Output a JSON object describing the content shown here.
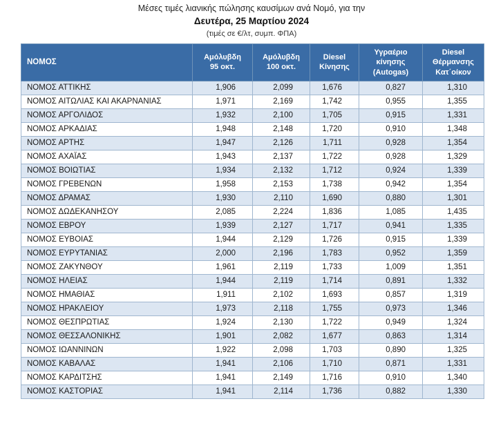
{
  "title": {
    "line1": "Μέσες τιμές λιανικής πώλησης καυσίμων ανά Νομό, για την",
    "line2": "Δευτέρα, 25 Μαρτίου 2024",
    "line3": "(τιμές σε €/λτ, συμπ. ΦΠΑ)"
  },
  "table": {
    "columns": [
      "ΝΟΜΟΣ",
      "Αμόλυβδη\n95 οκτ.",
      "Αμόλυβδη\n100 οκτ.",
      "Diesel\nΚίνησης",
      "Υγραέριο\nκίνησης\n(Autogas)",
      "Diesel\nΘέρμανσης\nΚατ΄οίκον"
    ],
    "rows": [
      {
        "nomos": "ΝΟΜΟΣ ΑΤΤΙΚΗΣ",
        "values": [
          "1,906",
          "2,099",
          "1,676",
          "0,827",
          "1,310"
        ]
      },
      {
        "nomos": "ΝΟΜΟΣ ΑΙΤΩΛΙΑΣ ΚΑΙ ΑΚΑΡΝΑΝΙΑΣ",
        "values": [
          "1,971",
          "2,169",
          "1,742",
          "0,955",
          "1,355"
        ]
      },
      {
        "nomos": "ΝΟΜΟΣ ΑΡΓΟΛΙΔΟΣ",
        "values": [
          "1,932",
          "2,100",
          "1,705",
          "0,915",
          "1,331"
        ]
      },
      {
        "nomos": "ΝΟΜΟΣ ΑΡΚΑΔΙΑΣ",
        "values": [
          "1,948",
          "2,148",
          "1,720",
          "0,910",
          "1,348"
        ]
      },
      {
        "nomos": "ΝΟΜΟΣ ΑΡΤΗΣ",
        "values": [
          "1,947",
          "2,126",
          "1,711",
          "0,928",
          "1,354"
        ]
      },
      {
        "nomos": "ΝΟΜΟΣ ΑΧΑΪΑΣ",
        "values": [
          "1,943",
          "2,137",
          "1,722",
          "0,928",
          "1,329"
        ]
      },
      {
        "nomos": "ΝΟΜΟΣ ΒΟΙΩΤΙΑΣ",
        "values": [
          "1,934",
          "2,132",
          "1,712",
          "0,924",
          "1,339"
        ]
      },
      {
        "nomos": "ΝΟΜΟΣ ΓΡΕΒΕΝΩΝ",
        "values": [
          "1,958",
          "2,153",
          "1,738",
          "0,942",
          "1,354"
        ]
      },
      {
        "nomos": "ΝΟΜΟΣ ΔΡΑΜΑΣ",
        "values": [
          "1,930",
          "2,110",
          "1,690",
          "0,880",
          "1,301"
        ]
      },
      {
        "nomos": "ΝΟΜΟΣ ΔΩΔΕΚΑΝΗΣΟΥ",
        "values": [
          "2,085",
          "2,224",
          "1,836",
          "1,085",
          "1,435"
        ]
      },
      {
        "nomos": "ΝΟΜΟΣ ΕΒΡΟΥ",
        "values": [
          "1,939",
          "2,127",
          "1,717",
          "0,941",
          "1,335"
        ]
      },
      {
        "nomos": "ΝΟΜΟΣ ΕΥΒΟΙΑΣ",
        "values": [
          "1,944",
          "2,129",
          "1,726",
          "0,915",
          "1,339"
        ]
      },
      {
        "nomos": "ΝΟΜΟΣ ΕΥΡΥΤΑΝΙΑΣ",
        "values": [
          "2,000",
          "2,196",
          "1,783",
          "0,952",
          "1,359"
        ]
      },
      {
        "nomos": "ΝΟΜΟΣ ΖΑΚΥΝΘΟΥ",
        "values": [
          "1,961",
          "2,119",
          "1,733",
          "1,009",
          "1,351"
        ]
      },
      {
        "nomos": "ΝΟΜΟΣ ΗΛΕΙΑΣ",
        "values": [
          "1,944",
          "2,119",
          "1,714",
          "0,891",
          "1,332"
        ]
      },
      {
        "nomos": "ΝΟΜΟΣ ΗΜΑΘΙΑΣ",
        "values": [
          "1,911",
          "2,102",
          "1,693",
          "0,857",
          "1,319"
        ]
      },
      {
        "nomos": "ΝΟΜΟΣ ΗΡΑΚΛΕΙΟΥ",
        "values": [
          "1,973",
          "2,118",
          "1,755",
          "0,973",
          "1,346"
        ]
      },
      {
        "nomos": "ΝΟΜΟΣ ΘΕΣΠΡΩΤΙΑΣ",
        "values": [
          "1,924",
          "2,130",
          "1,722",
          "0,949",
          "1,324"
        ]
      },
      {
        "nomos": "ΝΟΜΟΣ ΘΕΣΣΑΛΟΝΙΚΗΣ",
        "values": [
          "1,901",
          "2,082",
          "1,677",
          "0,863",
          "1,314"
        ]
      },
      {
        "nomos": "ΝΟΜΟΣ ΙΩΑΝΝΙΝΩΝ",
        "values": [
          "1,922",
          "2,098",
          "1,703",
          "0,890",
          "1,325"
        ]
      },
      {
        "nomos": "ΝΟΜΟΣ ΚΑΒΑΛΑΣ",
        "values": [
          "1,941",
          "2,106",
          "1,710",
          "0,871",
          "1,331"
        ]
      },
      {
        "nomos": "ΝΟΜΟΣ ΚΑΡΔΙΤΣΗΣ",
        "values": [
          "1,941",
          "2,149",
          "1,716",
          "0,910",
          "1,340"
        ]
      },
      {
        "nomos": "ΝΟΜΟΣ ΚΑΣΤΟΡΙΑΣ",
        "values": [
          "1,941",
          "2,114",
          "1,736",
          "0,882",
          "1,330"
        ]
      }
    ],
    "colors": {
      "header_bg": "#3a6ca6",
      "header_text": "#ffffff",
      "shaded_row_bg": "#dce6f2",
      "plain_row_bg": "#ffffff",
      "border": "#9fb6cf"
    }
  }
}
